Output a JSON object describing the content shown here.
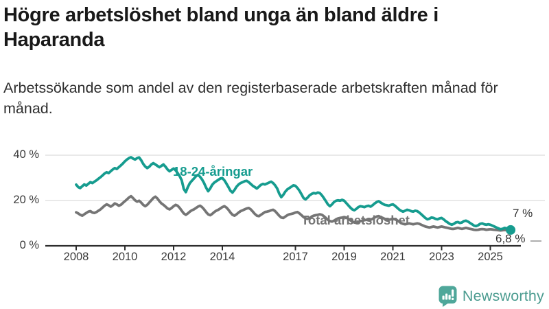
{
  "header": {
    "title": "Högre arbetslöshet bland unga än bland äldre i Haparanda",
    "subtitle": "Arbetssökande som andel av den registerbaserade arbetskraften månad för månad."
  },
  "chart": {
    "y_ticks": [
      "40 %",
      "20 %",
      "0 %"
    ],
    "series_labels": {
      "youth": "18-24-åringar",
      "total": "Total arbetslöshet"
    },
    "end_labels": {
      "youth": "7 %",
      "total": "6,8 %"
    },
    "colors": {
      "youth": "#169c8f",
      "total": "#757575",
      "grid": "#dcdcdc",
      "axis": "#2d2d2d",
      "logo": "#4fa79a"
    }
  },
  "chart_data": {
    "type": "line",
    "unit": "%",
    "frequency": "monthly",
    "x_start": "2008-01",
    "x_end": "2025-11",
    "ylim": [
      0,
      44
    ],
    "grid": "horizontal",
    "x_tick_labels": [
      "2008",
      "2010",
      "2012",
      "2014",
      "2017",
      "2019",
      "2021",
      "2023",
      "2025"
    ],
    "series": [
      {
        "name": "18-24-åringar",
        "color": "#169c8f",
        "end_value": 7.0,
        "values": [
          27.0,
          25.9,
          25.5,
          26.3,
          27.1,
          26.6,
          27.4,
          28.1,
          27.7,
          28.3,
          28.9,
          29.6,
          30.3,
          31.1,
          31.9,
          32.5,
          32.1,
          32.9,
          33.7,
          34.3,
          33.9,
          34.7,
          35.5,
          36.3,
          37.3,
          38.1,
          38.7,
          39.1,
          38.5,
          38.1,
          38.7,
          39.0,
          37.8,
          36.2,
          35.0,
          34.3,
          34.9,
          35.9,
          36.5,
          35.9,
          35.3,
          34.7,
          35.3,
          35.9,
          34.9,
          33.7,
          32.9,
          33.5,
          34.1,
          33.3,
          32.1,
          30.7,
          28.9,
          25.1,
          23.7,
          25.9,
          27.7,
          28.7,
          29.7,
          30.7,
          31.3,
          30.5,
          29.3,
          27.7,
          25.7,
          24.1,
          25.3,
          26.9,
          27.9,
          28.5,
          29.1,
          29.7,
          29.9,
          28.9,
          27.5,
          25.9,
          24.3,
          23.5,
          24.7,
          26.1,
          27.1,
          27.7,
          28.1,
          28.5,
          28.7,
          28.1,
          27.3,
          26.5,
          25.9,
          25.3,
          26.1,
          26.9,
          27.3,
          27.1,
          27.5,
          27.9,
          28.3,
          27.7,
          26.7,
          25.3,
          23.1,
          21.5,
          22.5,
          23.9,
          24.9,
          25.5,
          26.1,
          26.7,
          26.5,
          25.5,
          24.3,
          22.7,
          21.1,
          20.5,
          21.3,
          22.3,
          22.9,
          23.3,
          23.1,
          23.5,
          23.3,
          22.3,
          21.1,
          19.7,
          18.3,
          17.5,
          18.3,
          19.3,
          19.9,
          20.1,
          19.9,
          20.3,
          19.9,
          18.9,
          17.9,
          16.9,
          16.1,
          15.7,
          16.3,
          17.1,
          17.5,
          17.3,
          17.1,
          17.5,
          17.7,
          17.3,
          17.9,
          18.7,
          19.3,
          19.7,
          19.1,
          18.5,
          18.1,
          17.9,
          17.7,
          18.1,
          18.3,
          17.7,
          16.9,
          16.1,
          15.5,
          15.1,
          15.5,
          15.9,
          15.7,
          15.3,
          15.1,
          15.5,
          15.3,
          14.7,
          13.9,
          13.1,
          12.3,
          11.7,
          12.0,
          12.5,
          12.3,
          11.9,
          11.7,
          12.1,
          12.3,
          11.7,
          10.9,
          10.3,
          9.7,
          9.3,
          9.7,
          10.3,
          10.5,
          10.1,
          10.3,
          10.9,
          11.1,
          10.7,
          10.1,
          9.5,
          8.9,
          8.7,
          9.1,
          9.7,
          9.9,
          9.5,
          9.3,
          9.5,
          9.3,
          8.9,
          8.5,
          8.1,
          7.7,
          7.3,
          7.5,
          7.9,
          7.7,
          7.3,
          7.0
        ]
      },
      {
        "name": "Total arbetslöshet",
        "color": "#757575",
        "end_value": 6.8,
        "values": [
          14.8,
          14.3,
          13.7,
          13.3,
          13.9,
          14.5,
          15.1,
          15.3,
          14.7,
          14.5,
          14.9,
          15.5,
          16.1,
          16.9,
          17.7,
          18.3,
          17.9,
          17.3,
          17.9,
          18.7,
          18.3,
          17.7,
          18.1,
          18.9,
          19.7,
          20.5,
          21.3,
          21.9,
          21.1,
          20.1,
          19.5,
          19.9,
          19.1,
          18.1,
          17.5,
          18.1,
          19.1,
          20.1,
          21.1,
          21.7,
          20.9,
          19.7,
          18.7,
          18.1,
          17.3,
          16.5,
          16.1,
          16.7,
          17.5,
          18.1,
          17.7,
          16.7,
          15.5,
          14.3,
          13.7,
          14.3,
          15.1,
          15.7,
          16.1,
          16.7,
          17.3,
          17.7,
          17.1,
          16.1,
          14.9,
          13.9,
          13.5,
          14.1,
          14.9,
          15.5,
          15.9,
          16.5,
          17.1,
          17.5,
          16.9,
          15.9,
          14.7,
          13.7,
          13.3,
          13.9,
          14.7,
          15.3,
          15.7,
          16.1,
          16.5,
          16.7,
          16.1,
          15.1,
          14.1,
          13.3,
          13.1,
          13.7,
          14.3,
          14.9,
          15.1,
          15.3,
          15.7,
          15.9,
          15.3,
          14.3,
          13.3,
          12.5,
          12.3,
          12.9,
          13.5,
          13.9,
          14.1,
          14.3,
          14.7,
          14.9,
          14.3,
          13.5,
          12.7,
          12.1,
          11.9,
          12.3,
          12.9,
          13.3,
          13.5,
          13.7,
          13.9,
          13.7,
          13.1,
          12.3,
          11.5,
          10.9,
          10.7,
          11.1,
          11.7,
          12.1,
          12.3,
          12.5,
          12.7,
          12.5,
          11.9,
          11.3,
          10.7,
          10.3,
          10.1,
          10.5,
          10.9,
          11.1,
          11.3,
          11.5,
          11.7,
          11.5,
          11.9,
          12.5,
          12.9,
          13.1,
          12.7,
          12.3,
          11.9,
          11.7,
          11.5,
          11.7,
          11.9,
          11.7,
          11.3,
          10.7,
          10.1,
          9.7,
          9.5,
          9.7,
          9.9,
          9.7,
          9.5,
          9.7,
          9.9,
          9.7,
          9.3,
          8.9,
          8.5,
          8.3,
          8.1,
          8.3,
          8.5,
          8.3,
          8.1,
          8.3,
          8.5,
          8.3,
          8.1,
          7.9,
          7.7,
          7.5,
          7.5,
          7.7,
          7.9,
          7.7,
          7.5,
          7.7,
          7.9,
          7.7,
          7.5,
          7.3,
          7.1,
          7.0,
          7.1,
          7.3,
          7.4,
          7.3,
          7.1,
          7.2,
          7.3,
          7.2,
          7.1,
          7.0,
          6.9,
          6.8,
          6.9,
          7.0,
          6.9,
          6.8,
          6.8
        ]
      }
    ]
  },
  "footer": {
    "brand": "Newsworthy"
  }
}
